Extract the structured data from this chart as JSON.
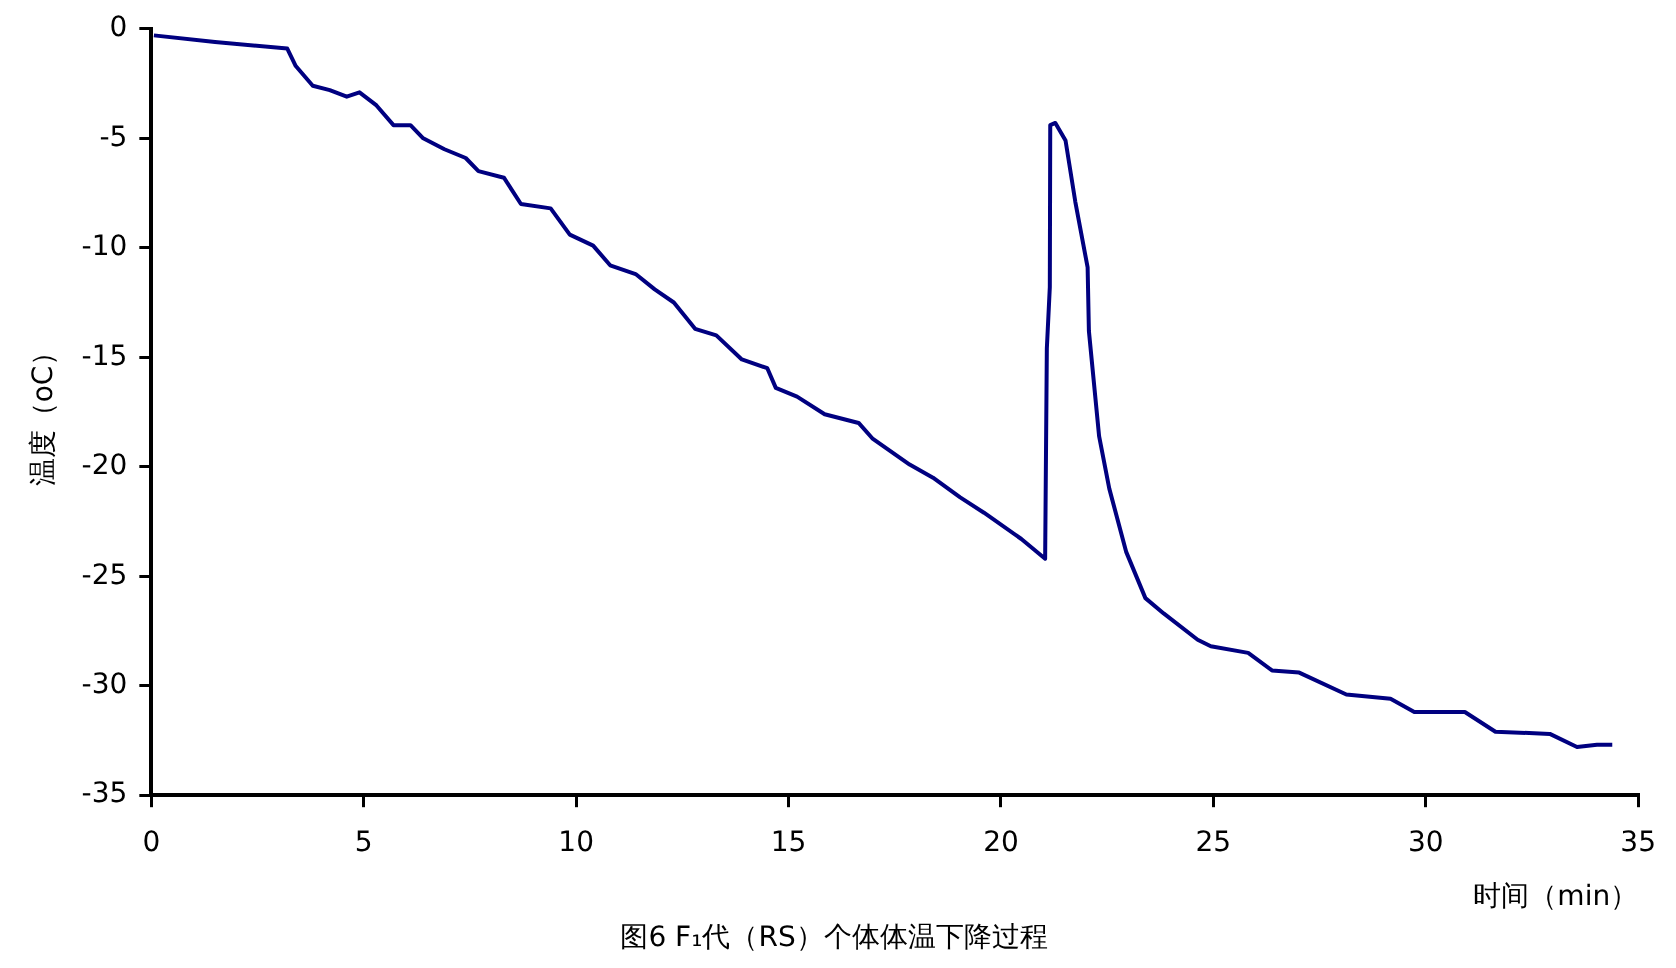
{
  "chart_data": {
    "type": "line",
    "title": "图6 F₁代（RS）个体体温下降过程",
    "xlabel": "时间（min）",
    "ylabel": "温度（oC）",
    "xlim": [
      0,
      35
    ],
    "xticks": [
      0,
      5,
      10,
      15,
      20,
      25,
      30,
      35
    ],
    "ylim": [
      -35,
      0
    ],
    "yticks": [
      -35,
      -30,
      -25,
      -20,
      -15,
      -10,
      -5,
      0
    ],
    "grid": false,
    "legend": false,
    "marker": "none",
    "line_style": "solid",
    "series": [
      {
        "color": "#000080",
        "x": [
          0.06,
          1.5,
          3.2,
          3.4,
          3.8,
          4.2,
          4.6,
          4.9,
          5.3,
          5.7,
          6.1,
          6.4,
          6.9,
          7.4,
          7.7,
          8.3,
          8.7,
          9.4,
          9.85,
          10.4,
          10.8,
          11.4,
          11.85,
          12.3,
          12.8,
          13.3,
          13.9,
          14.5,
          14.7,
          15.2,
          15.85,
          16.65,
          16.97,
          17.85,
          18.4,
          19.04,
          19.6,
          20.48,
          21.04,
          21.08,
          21.15,
          21.16,
          21.28,
          21.52,
          21.75,
          22.04,
          22.07,
          22.31,
          22.55,
          22.95,
          23.4,
          23.83,
          24.63,
          24.94,
          25.82,
          26.38,
          27.02,
          28.13,
          29.17,
          29.73,
          30.92,
          31.64,
          32.92,
          33.56,
          34.03,
          34.39
        ],
        "values": [
          -0.3,
          -0.6,
          -0.9,
          -1.7,
          -2.6,
          -2.8,
          -3.1,
          -2.9,
          -3.5,
          -4.4,
          -4.4,
          -5.0,
          -5.5,
          -5.9,
          -6.5,
          -6.8,
          -8.0,
          -8.2,
          -9.4,
          -9.9,
          -10.8,
          -11.2,
          -11.9,
          -12.5,
          -13.7,
          -14.0,
          -15.1,
          -15.5,
          -16.4,
          -16.8,
          -17.6,
          -18.0,
          -18.7,
          -19.9,
          -20.5,
          -21.4,
          -22.1,
          -23.3,
          -24.2,
          -14.6,
          -11.8,
          -4.4,
          -4.3,
          -5.1,
          -7.9,
          -10.9,
          -13.8,
          -18.6,
          -21.0,
          -23.9,
          -26.0,
          -26.7,
          -27.9,
          -28.2,
          -28.5,
          -29.3,
          -29.4,
          -30.4,
          -30.6,
          -31.2,
          -31.2,
          -32.1,
          -32.2,
          -32.8,
          -32.7,
          -32.7
        ]
      }
    ]
  }
}
